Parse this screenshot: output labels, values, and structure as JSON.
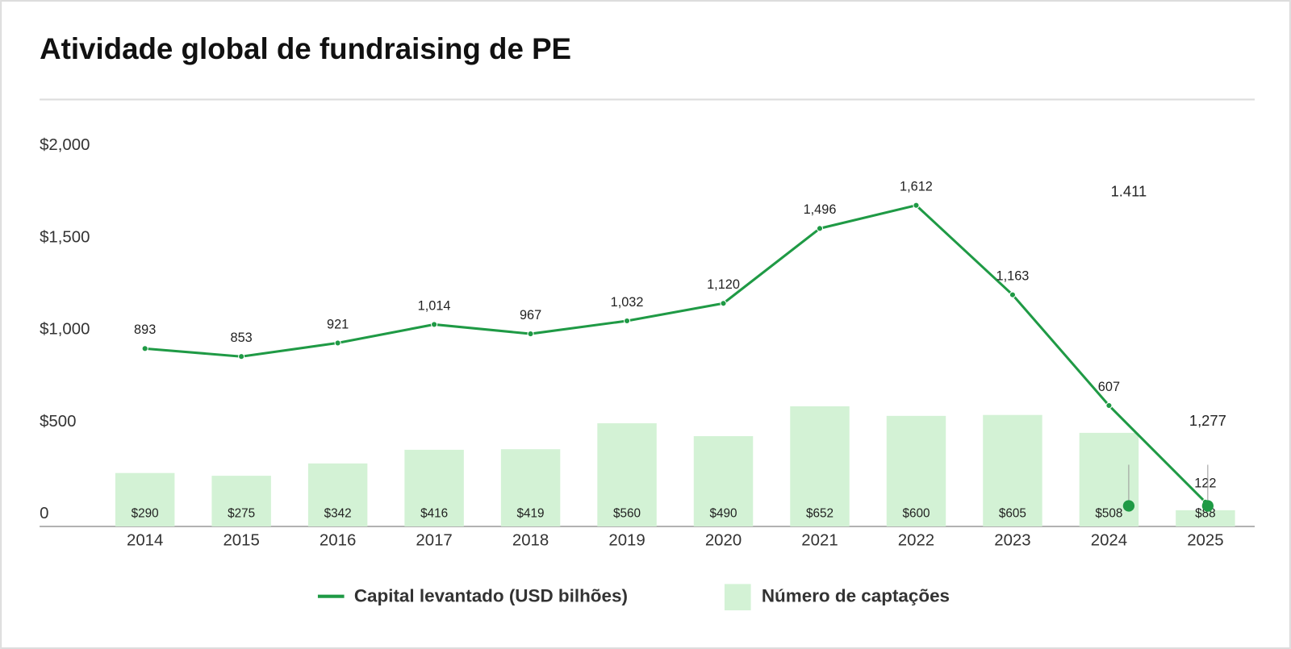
{
  "chart_data": {
    "type": "bar-line",
    "title": "Atividade global de fundraising de PE",
    "categories": [
      "2014",
      "2015",
      "2016",
      "2017",
      "2018",
      "2019",
      "2020",
      "2021",
      "2022",
      "2023",
      "2024",
      "2025"
    ],
    "series": [
      {
        "name": "Número de captações",
        "type": "bar",
        "color": "#d3f2d5",
        "values": [
          290,
          275,
          342,
          416,
          419,
          560,
          490,
          652,
          600,
          605,
          508,
          88
        ],
        "value_labels": [
          "$290",
          "$275",
          "$342",
          "$416",
          "$419",
          "$560",
          "$490",
          "$652",
          "$600",
          "$605",
          "$508",
          "$88"
        ]
      },
      {
        "name": "Capital levantado (USD bilhões)",
        "type": "line",
        "color": "#1f9a45",
        "axis": "y2",
        "values": [
          893,
          853,
          921,
          1014,
          967,
          1032,
          1120,
          1496,
          1612,
          1163,
          607,
          122
        ],
        "value_labels": [
          "893",
          "853",
          "921",
          "1,014",
          "967",
          "1,032",
          "1,120",
          "1,496",
          "1,612",
          "1,163",
          "607",
          "122"
        ]
      }
    ],
    "ylim": [
      0,
      2000
    ],
    "yticks": [
      0,
      {
        "value": 500,
        "label": "$500"
      },
      {
        "value": 1000,
        "label": "$1,000"
      },
      {
        "value": 1500,
        "label": "$1,500"
      },
      {
        "value": 2000,
        "label": "$2,000"
      }
    ],
    "y2lim": [
      0,
      1850
    ],
    "annotations": [
      {
        "text": "1.411"
      },
      {
        "text": "1,277"
      }
    ]
  }
}
